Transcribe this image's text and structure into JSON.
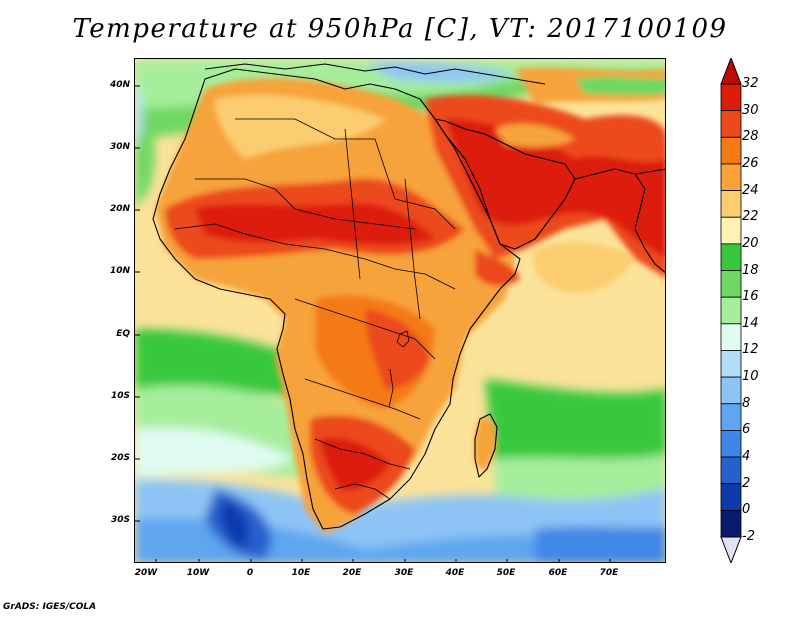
{
  "title": "Temperature at 950hPa [C], VT: 2017100109",
  "credit": "GrADS: IGES/COLA",
  "map": {
    "lon_range": [
      -24,
      80
    ],
    "lat_range": [
      -37,
      45
    ],
    "y_ticks": [
      "40N",
      "30N",
      "20N",
      "10N",
      "EQ",
      "10S",
      "20S",
      "30S"
    ],
    "x_ticks": [
      "20W",
      "10W",
      "0",
      "10E",
      "20E",
      "30E",
      "40E",
      "50E",
      "60E",
      "70E"
    ]
  },
  "colorbar": {
    "labels": [
      "32",
      "30",
      "28",
      "26",
      "24",
      "22",
      "20",
      "18",
      "16",
      "14",
      "12",
      "10",
      "8",
      "6",
      "4",
      "2",
      "0",
      "-2"
    ],
    "colors": [
      "#dc1c0a",
      "#ec4a1b",
      "#f47a18",
      "#f7a33a",
      "#fbcd6f",
      "#fff2b4",
      "#39c83c",
      "#6ed862",
      "#a6ee9c",
      "#e0fbf2",
      "#b4ddf9",
      "#8ec4f5",
      "#5ea6ef",
      "#3f87e6",
      "#2560cd",
      "#0e3aae",
      "#071b70"
    ],
    "top_arrow_color": "#bd0b03",
    "bottom_arrow_color": "#e4e0f8"
  }
}
